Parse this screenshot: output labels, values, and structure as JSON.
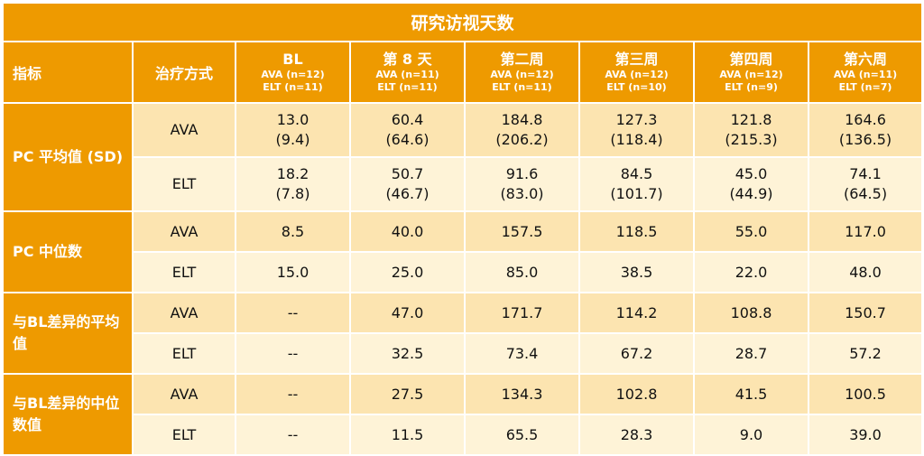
{
  "table": {
    "title": "研究访视天数",
    "metric_header": "指标",
    "treatment_header": "治疗方式",
    "columns": [
      {
        "name": "BL",
        "ava": "AVA (n=12)",
        "elt": "ELT (n=11)"
      },
      {
        "name": "第 8 天",
        "ava": "AVA (n=11)",
        "elt": "ELT (n=11)"
      },
      {
        "name": "第二周",
        "ava": "AVA (n=12)",
        "elt": "ELT (n=11)"
      },
      {
        "name": "第三周",
        "ava": "AVA (n=12)",
        "elt": "ELT (n=10)"
      },
      {
        "name": "第四周",
        "ava": "AVA (n=12)",
        "elt": "ELT (n=9)"
      },
      {
        "name": "第六周",
        "ava": "AVA (n=11)",
        "elt": "ELT (n=7)"
      }
    ],
    "groups": [
      {
        "metric": "PC 平均值 (SD)",
        "rows": [
          {
            "treatment": "AVA",
            "values": [
              {
                "main": "13.0",
                "sd": "(9.4)"
              },
              {
                "main": "60.4",
                "sd": "(64.6)"
              },
              {
                "main": "184.8",
                "sd": "(206.2)"
              },
              {
                "main": "127.3",
                "sd": "(118.4)"
              },
              {
                "main": "121.8",
                "sd": "(215.3)"
              },
              {
                "main": "164.6",
                "sd": "(136.5)"
              }
            ]
          },
          {
            "treatment": "ELT",
            "values": [
              {
                "main": "18.2",
                "sd": "(7.8)"
              },
              {
                "main": "50.7",
                "sd": "(46.7)"
              },
              {
                "main": "91.6",
                "sd": "(83.0)"
              },
              {
                "main": "84.5",
                "sd": "(101.7)"
              },
              {
                "main": "45.0",
                "sd": "(44.9)"
              },
              {
                "main": "74.1",
                "sd": "(64.5)"
              }
            ]
          }
        ]
      },
      {
        "metric": "PC 中位数",
        "rows": [
          {
            "treatment": "AVA",
            "values": [
              "8.5",
              "40.0",
              "157.5",
              "118.5",
              "55.0",
              "117.0"
            ]
          },
          {
            "treatment": "ELT",
            "values": [
              "15.0",
              "25.0",
              "85.0",
              "38.5",
              "22.0",
              "48.0"
            ]
          }
        ]
      },
      {
        "metric": "与BL差异的平均值",
        "rows": [
          {
            "treatment": "AVA",
            "values": [
              "--",
              "47.0",
              "171.7",
              "114.2",
              "108.8",
              "150.7"
            ]
          },
          {
            "treatment": "ELT",
            "values": [
              "--",
              "32.5",
              "73.4",
              "67.2",
              "28.7",
              "57.2"
            ]
          }
        ]
      },
      {
        "metric": "与BL差异的中位数值",
        "rows": [
          {
            "treatment": "AVA",
            "values": [
              "--",
              "27.5",
              "134.3",
              "102.8",
              "41.5",
              "100.5"
            ]
          },
          {
            "treatment": "ELT",
            "values": [
              "--",
              "11.5",
              "65.5",
              "28.3",
              "9.0",
              "39.0"
            ]
          }
        ]
      }
    ],
    "colors": {
      "header": "#ee9a00",
      "row_dark": "#fce4b0",
      "row_light": "#fef3d7"
    }
  }
}
